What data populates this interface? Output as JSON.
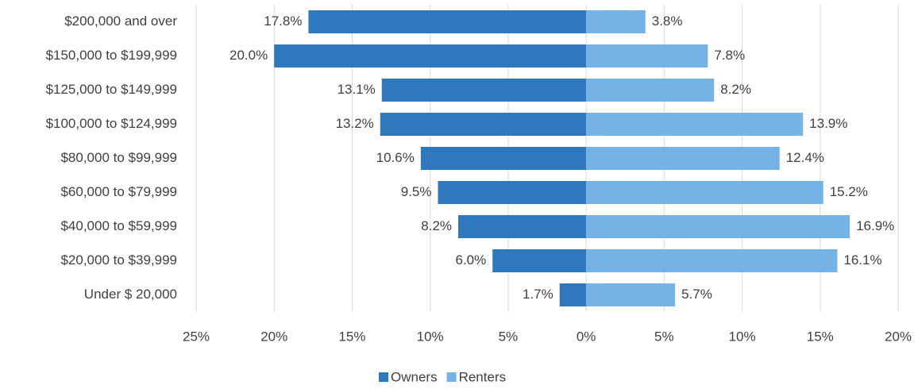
{
  "chart_data": {
    "type": "diverging_bar",
    "categories": [
      "$200,000 and over",
      "$150,000 to $199,999",
      "$125,000 to $149,999",
      "$100,000 to $124,999",
      "$80,000 to $99,999",
      "$60,000 to $79,999",
      "$40,000 to $59,999",
      "$20,000 to $39,999",
      "Under $ 20,000"
    ],
    "series": [
      {
        "name": "Owners",
        "color": "#2e78bd",
        "values": [
          -17.8,
          -20.0,
          -13.1,
          -13.2,
          -10.6,
          -9.5,
          -8.2,
          -6.0,
          -1.7
        ],
        "value_labels": [
          "17.8%",
          "20.0%",
          "13.1%",
          "13.2%",
          "10.6%",
          "9.5%",
          "8.2%",
          "6.0%",
          "1.7%"
        ]
      },
      {
        "name": "Renters",
        "color": "#75b2e6",
        "values": [
          3.8,
          7.8,
          8.2,
          13.9,
          12.4,
          15.2,
          16.9,
          16.1,
          5.7
        ],
        "value_labels": [
          "3.8%",
          "7.8%",
          "8.2%",
          "13.9%",
          "12.4%",
          "15.2%",
          "16.9%",
          "16.1%",
          "5.7%"
        ]
      }
    ],
    "xlim": [
      -25,
      20
    ],
    "xticks": [
      {
        "value": -25,
        "label": "25%"
      },
      {
        "value": -20,
        "label": "20%"
      },
      {
        "value": -15,
        "label": "15%"
      },
      {
        "value": -10,
        "label": "10%"
      },
      {
        "value": -5,
        "label": "5%"
      },
      {
        "value": 0,
        "label": "0%"
      },
      {
        "value": 5,
        "label": "5%"
      },
      {
        "value": 10,
        "label": "10%"
      },
      {
        "value": 15,
        "label": "15%"
      },
      {
        "value": 20,
        "label": "20%"
      }
    ],
    "grid": true,
    "legend": "bottom"
  }
}
